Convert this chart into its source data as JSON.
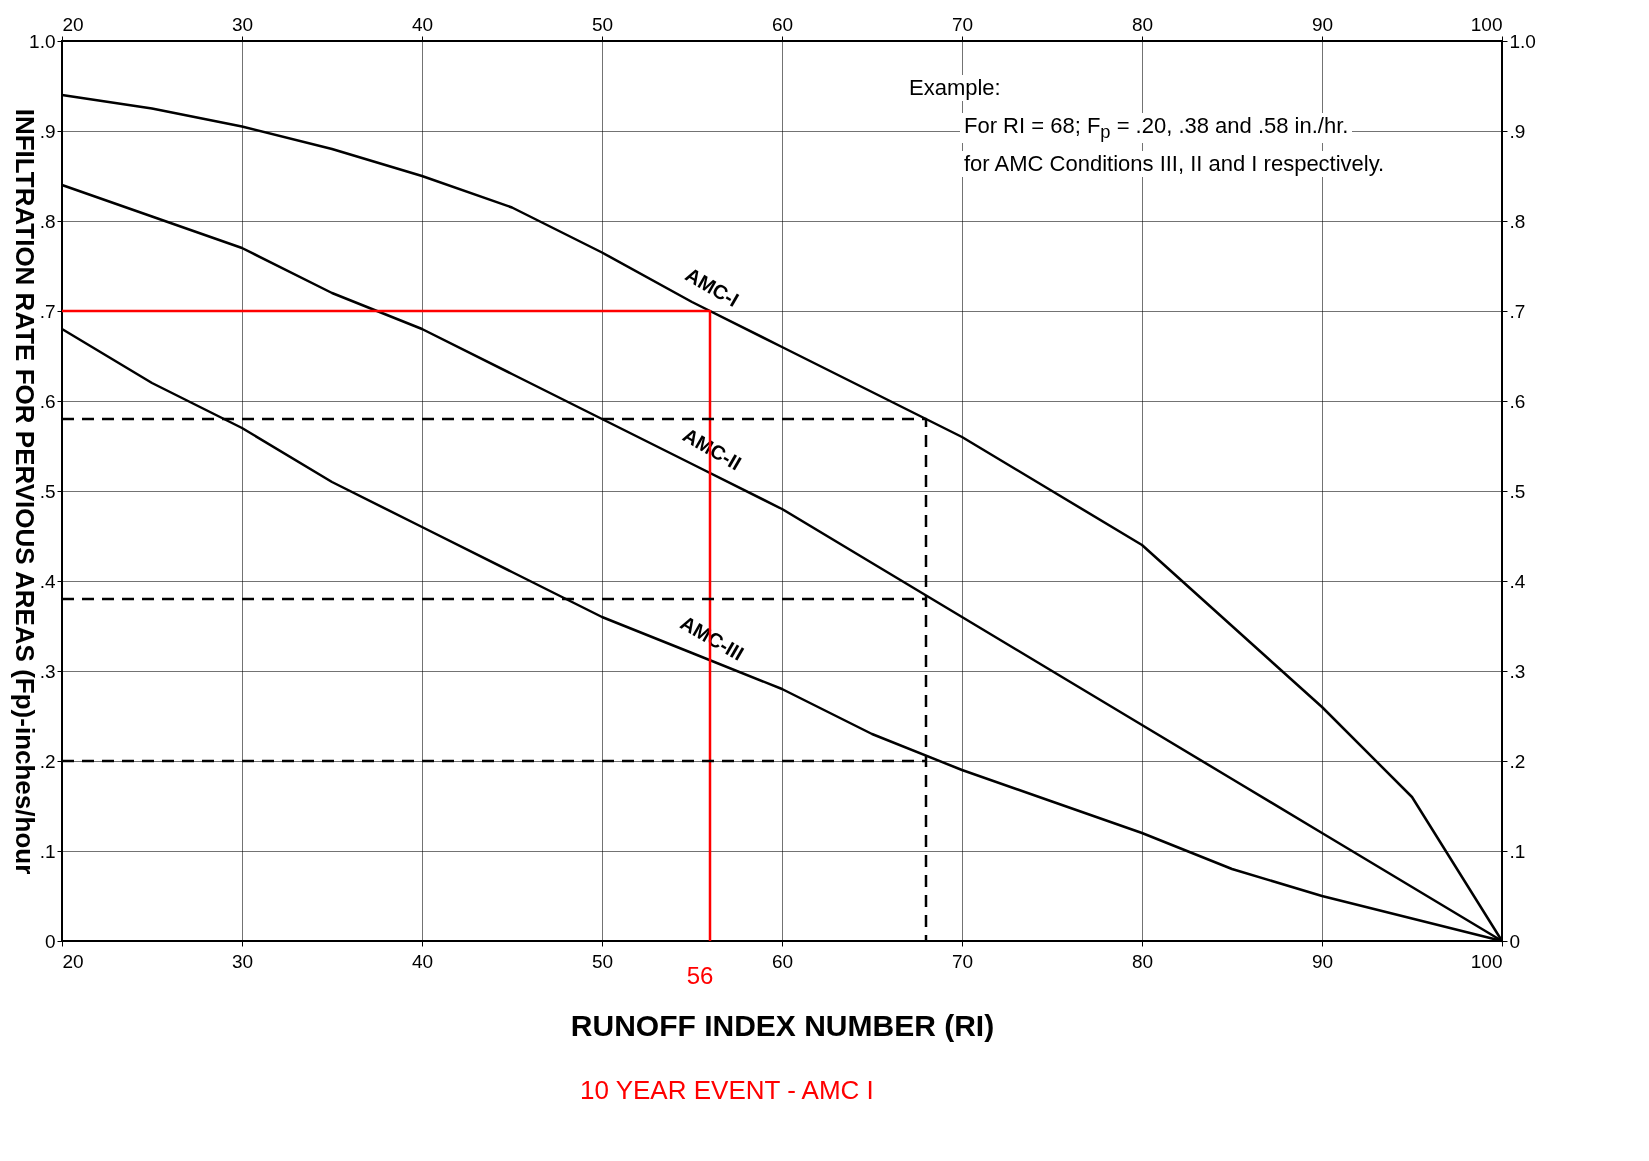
{
  "chart_data": {
    "type": "line",
    "xlabel": "RUNOFF INDEX NUMBER (RI)",
    "ylabel": "INFILTRATION RATE FOR PERVIOUS AREAS (Fp)-inches/hour",
    "x": [
      20,
      25,
      30,
      35,
      40,
      45,
      50,
      55,
      60,
      65,
      70,
      75,
      80,
      85,
      90,
      95,
      100
    ],
    "series": [
      {
        "name": "AMC-I",
        "color": "#000000",
        "values": [
          0.94,
          0.925,
          0.905,
          0.88,
          0.85,
          0.815,
          0.765,
          0.71,
          0.66,
          0.61,
          0.56,
          0.5,
          0.44,
          0.35,
          0.26,
          0.16,
          0
        ]
      },
      {
        "name": "AMC-II",
        "color": "#000000",
        "values": [
          0.84,
          0.805,
          0.77,
          0.72,
          0.68,
          0.63,
          0.58,
          0.53,
          0.48,
          0.42,
          0.36,
          0.3,
          0.24,
          0.18,
          0.12,
          0.06,
          0
        ]
      },
      {
        "name": "AMC-III",
        "color": "#000000",
        "values": [
          0.68,
          0.62,
          0.57,
          0.51,
          0.46,
          0.41,
          0.36,
          0.32,
          0.28,
          0.23,
          0.19,
          0.155,
          0.12,
          0.08,
          0.05,
          0.025,
          0
        ]
      },
      {
        "color": "#ff0000",
        "x": [
          20,
          56,
          56
        ],
        "values": [
          0.7,
          0.7,
          0
        ]
      },
      {
        "color": "#000000",
        "line_style": "dashed",
        "x": [
          20,
          68,
          68
        ],
        "values": [
          0.58,
          0.58,
          0
        ]
      },
      {
        "color": "#000000",
        "line_style": "dashed",
        "x": [
          20,
          68
        ],
        "values": [
          0.38,
          0.38
        ]
      },
      {
        "color": "#000000",
        "line_style": "dashed",
        "x": [
          20,
          68
        ],
        "values": [
          0.2,
          0.2
        ]
      }
    ],
    "xlim": [
      20,
      100
    ],
    "xticks": [
      20,
      30,
      40,
      50,
      60,
      70,
      80,
      90,
      100
    ],
    "x2lim": [
      20,
      100
    ],
    "x2ticks": [
      20,
      30,
      40,
      50,
      60,
      70,
      80,
      90,
      100
    ],
    "ylim": [
      0,
      1
    ],
    "yticks": [
      0,
      {
        "value": 0.1,
        "label": ".1"
      },
      {
        "value": 0.2,
        "label": ".2"
      },
      {
        "value": 0.3,
        "label": ".3"
      },
      {
        "value": 0.4,
        "label": ".4"
      },
      {
        "value": 0.5,
        "label": ".5"
      },
      {
        "value": 0.6,
        "label": ".6"
      },
      {
        "value": 0.7,
        "label": ".7"
      },
      {
        "value": 0.8,
        "label": ".8"
      },
      {
        "value": 0.9,
        "label": ".9"
      },
      {
        "value": 1,
        "label": "1.0"
      }
    ],
    "y2lim": [
      0,
      1
    ],
    "y2ticks": [
      0,
      {
        "value": 0.1,
        "label": ".1"
      },
      {
        "value": 0.2,
        "label": ".2"
      },
      {
        "value": 0.3,
        "label": ".3"
      },
      {
        "value": 0.4,
        "label": ".4"
      },
      {
        "value": 0.5,
        "label": ".5"
      },
      {
        "value": 0.6,
        "label": ".6"
      },
      {
        "value": 0.7,
        "label": ".7"
      },
      {
        "value": 0.8,
        "label": ".8"
      },
      {
        "value": 0.9,
        "label": ".9"
      },
      {
        "value": 1,
        "label": "1.0"
      }
    ],
    "grid": true,
    "line_style": "solid",
    "marker": "none",
    "annotations": [
      "Example:",
      "For RI = 68; F$_{p}$ = .20, .38 and .58 in./hr.",
      "for AMC Conditions III, II and I respectively.",
      {
        "text": "56",
        "x": 56,
        "y": 0
      },
      "10 YEAR EVENT - AMC I"
    ]
  }
}
